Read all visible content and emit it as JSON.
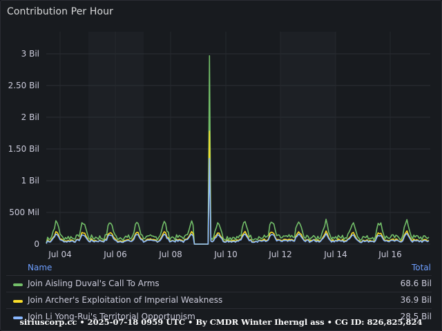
{
  "panel": {
    "title": "Contribution Per Hour"
  },
  "legend": {
    "name_header": "Name",
    "total_header": "Total"
  },
  "footer": {
    "text": "siriuscorp.cc • 2025-07-18 0959 UTC • By CMDR Winter Iherngl ass • CG ID: 826,825,824"
  },
  "colors": {
    "green": "#73bf69",
    "yellow": "#fade2a",
    "blue": "#8ab8ff"
  },
  "chart_data": {
    "type": "line",
    "yticks": [
      "0",
      "500 Mil",
      "1 Bil",
      "1.50 Bil",
      "2 Bil",
      "2.50 Bil",
      "3 Bil"
    ],
    "ylim": [
      0,
      3000000000
    ],
    "xticks": [
      "Jul 04",
      "Jul 06",
      "Jul 08",
      "Jul 10",
      "Jul 12",
      "Jul 14",
      "Jul 16"
    ],
    "x": [
      0,
      1,
      2,
      3,
      4,
      5,
      6,
      7,
      8,
      9,
      10,
      11,
      12,
      13,
      14,
      15,
      16,
      17,
      18,
      19,
      20,
      21,
      22,
      23,
      24,
      25,
      26,
      27,
      28,
      29,
      30,
      31,
      32,
      33,
      34,
      35,
      36,
      37,
      38,
      39,
      40,
      41,
      42,
      43,
      44,
      45,
      46,
      47,
      48,
      49,
      50,
      51,
      52,
      53,
      54,
      55,
      56,
      57,
      58,
      59,
      60,
      61,
      62,
      63,
      64,
      65,
      66,
      67,
      68,
      69,
      70,
      71,
      72,
      73,
      74,
      75,
      76,
      77,
      78,
      79,
      80,
      81,
      82,
      83,
      84,
      85,
      86,
      87,
      88,
      89,
      90,
      91,
      92,
      93,
      94,
      95,
      96,
      97,
      98,
      99,
      100,
      101,
      102,
      103,
      104,
      105,
      106,
      107,
      108,
      109,
      110,
      111,
      112,
      113,
      114,
      115,
      116,
      117,
      118,
      119,
      120,
      121,
      122,
      123,
      124,
      125,
      126,
      127,
      128,
      129,
      130,
      131,
      132,
      133,
      134,
      135,
      136,
      137,
      138,
      139,
      140,
      141,
      142,
      143,
      144,
      145,
      146,
      147,
      148,
      149,
      150,
      151,
      152,
      153,
      154,
      155,
      156,
      157,
      158,
      159,
      160,
      161,
      162,
      163,
      164,
      165,
      166,
      167,
      168,
      169,
      170,
      171,
      172,
      173,
      174,
      175,
      176,
      177,
      178,
      179,
      180,
      181,
      182,
      183,
      184,
      185,
      186,
      187,
      188,
      189,
      190,
      191,
      192,
      193,
      194,
      195,
      196,
      197,
      198,
      199,
      200,
      201,
      202,
      203,
      204,
      205,
      206,
      207,
      208,
      209,
      210,
      211,
      212,
      213,
      214,
      215,
      216,
      217,
      218,
      219,
      220,
      221,
      222,
      223,
      224,
      225,
      226,
      227,
      228,
      229,
      230,
      231,
      232,
      233,
      234,
      235,
      236,
      237,
      238,
      239,
      240,
      241,
      242,
      243,
      244,
      245,
      246,
      247,
      248,
      249,
      250,
      251,
      252,
      253,
      254,
      255,
      256,
      257,
      258,
      259,
      260,
      261,
      262,
      263,
      264,
      265,
      266,
      267,
      268,
      269,
      270,
      271,
      272,
      273,
      274,
      275,
      276,
      277,
      278,
      279,
      280,
      281,
      282,
      283,
      284,
      285,
      286,
      287,
      288,
      289,
      290,
      291,
      292,
      293,
      294,
      295,
      296,
      297,
      298,
      299,
      300,
      301,
      302,
      303,
      304,
      305,
      306,
      307,
      308,
      309,
      310,
      311,
      312,
      313,
      314,
      315,
      316,
      317,
      318,
      319,
      320,
      321,
      322,
      323,
      324,
      325,
      326,
      327,
      328,
      329,
      330,
      331,
      332,
      333,
      334,
      335,
      336,
      337,
      338,
      339,
      340,
      341,
      342,
      343,
      344,
      345,
      346,
      347,
      348,
      349,
      350,
      351,
      352,
      353,
      354,
      355,
      356,
      357,
      358,
      359,
      360,
      361,
      362,
      363,
      364,
      365,
      366,
      367,
      368,
      369,
      370,
      371,
      372,
      373,
      374,
      375,
      376,
      377,
      378,
      379,
      380,
      381,
      382,
      383,
      384,
      385,
      386,
      387,
      388,
      389,
      390,
      391,
      392,
      393,
      394,
      395,
      396,
      397,
      398,
      399,
      400,
      401,
      402,
      403,
      404,
      405,
      406,
      407,
      408,
      409,
      410,
      411,
      412,
      413,
      414,
      415,
      416,
      417,
      418,
      419,
      420,
      421,
      422,
      423,
      424,
      425,
      426,
      427,
      428,
      429,
      430,
      431,
      432,
      433,
      434,
      435,
      436,
      437,
      438,
      439,
      440,
      441,
      442,
      443,
      444,
      445,
      446,
      447,
      448,
      449,
      450,
      451,
      452,
      453,
      454,
      455,
      456,
      457,
      458,
      459,
      460,
      461,
      462,
      463,
      464,
      465,
      466,
      467,
      468,
      469,
      470,
      471,
      472,
      473,
      474,
      475,
      476,
      477,
      478,
      479,
      480,
      481,
      482,
      483,
      484,
      485,
      486,
      487,
      488,
      489,
      490,
      491,
      492,
      493,
      494,
      495,
      496,
      497,
      498,
      499,
      500,
      501,
      502,
      503,
      504,
      505,
      506,
      507,
      508,
      509,
      510,
      511,
      512,
      513,
      514,
      515,
      516,
      517,
      518,
      519,
      520,
      521,
      522,
      523,
      524,
      525,
      526,
      527,
      528,
      529,
      530,
      531,
      532,
      533,
      534,
      535,
      536,
      537,
      538,
      539,
      540,
      541,
      542,
      543,
      544,
      545,
      546,
      547,
      548,
      549,
      550,
      551
    ],
    "series": [
      {
        "name": "Join Aisling Duval's Call To Arms",
        "total": "68.6 Bil",
        "color": "#73bf69"
      },
      {
        "name": "Join Archer's Exploitation of Imperial Weakness",
        "total": "36.9 Bil",
        "color": "#fade2a"
      },
      {
        "name": "Join Li Yong-Rui's Territorial Opportunism",
        "total": "28.5 Bil",
        "color": "#8ab8ff"
      }
    ]
  }
}
